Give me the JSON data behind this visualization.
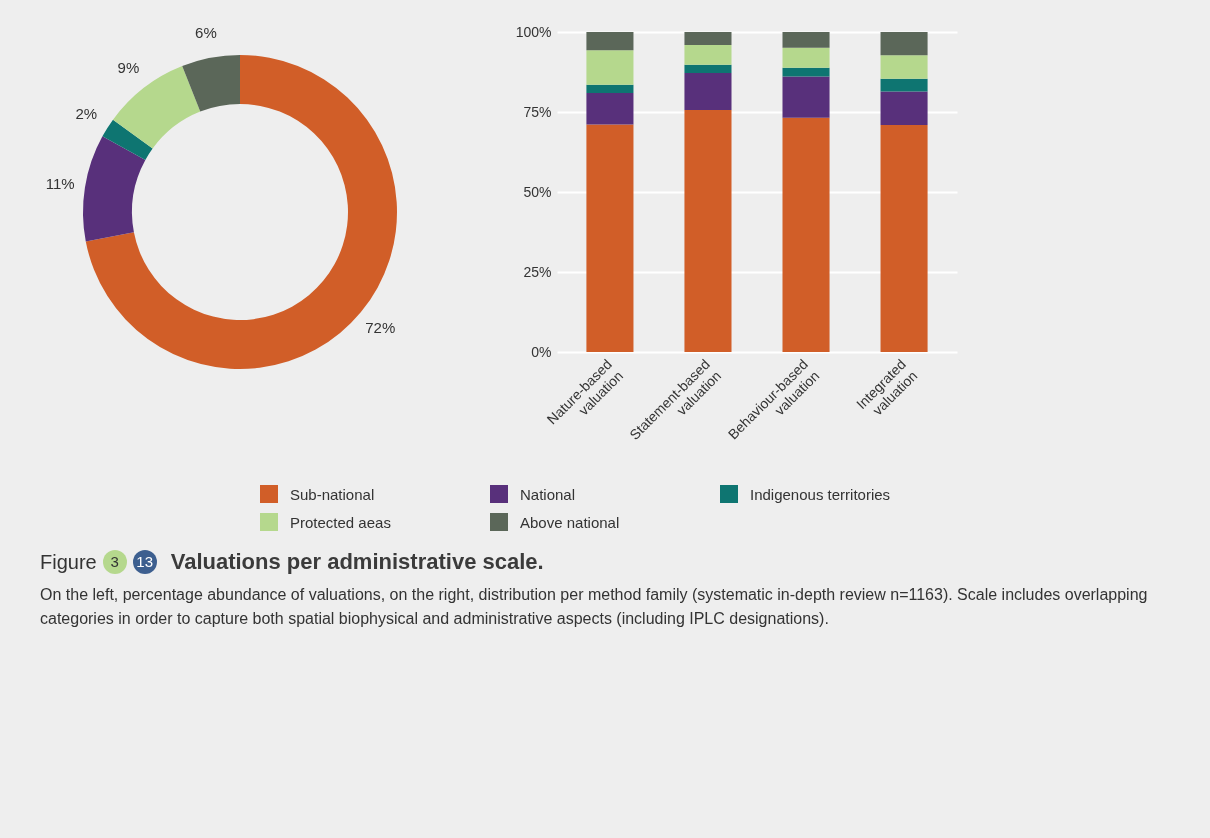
{
  "chart_data": [
    {
      "type": "donut",
      "title": "Valuations per administrative scale.",
      "annotations": [
        "Figure",
        "3",
        "13",
        "On the left, percentage abundance of valuations, on the right, distribution per method family (systematic in-depth review n=1163). Scale includes overlapping categories in order to capture both spatial biophysical and administrative aspects (including IPLC designations)."
      ],
      "categories": [
        "Sub-national",
        "National",
        "Indigenous territories",
        "Protected aeas",
        "Above national"
      ],
      "values": [
        72,
        11,
        2,
        9,
        6
      ],
      "value_labels": [
        "72%",
        "11%",
        "2%",
        "9%",
        "6%"
      ],
      "colors": [
        "#d15e28",
        "#58307b",
        "#0e7571",
        "#b5d88d",
        "#5b6759"
      ],
      "legend": "bottom"
    },
    {
      "type": "bar",
      "stacked": true,
      "grid": "y",
      "legend": "bottom",
      "categories": [
        "Nature-based valuation",
        "Statement-based valuation",
        "Behaviour-based valuation",
        "Integrated valuation"
      ],
      "ylim": [
        0,
        100
      ],
      "yticks": [
        {
          "value": 0,
          "label": "0%"
        },
        {
          "value": 25,
          "label": "25%"
        },
        {
          "value": 50,
          "label": "50%"
        },
        {
          "value": 75,
          "label": "75%"
        },
        {
          "value": 100,
          "label": "100%"
        }
      ],
      "series": [
        {
          "name": "Sub-national",
          "color": "#d15e28",
          "values": [
            71.1,
            75.6,
            73.2,
            70.9
          ]
        },
        {
          "name": "National",
          "color": "#58307b",
          "values": [
            9.8,
            11.6,
            12.9,
            10.5
          ]
        },
        {
          "name": "Indigenous territories",
          "color": "#0e7571",
          "values": [
            2.6,
            2.6,
            2.7,
            4.0
          ]
        },
        {
          "name": "Protected aeas",
          "color": "#b5d88d",
          "values": [
            10.8,
            6.1,
            6.3,
            7.3
          ]
        },
        {
          "name": "Above national",
          "color": "#5b6759",
          "values": [
            5.7,
            4.1,
            4.9,
            7.3
          ]
        }
      ]
    }
  ]
}
